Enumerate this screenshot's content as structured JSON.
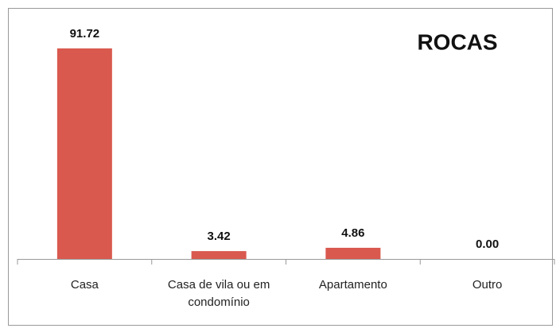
{
  "chart_data": {
    "type": "bar",
    "title": "ROCAS",
    "categories": [
      "Casa",
      "Casa de vila ou em condomínio",
      "Apartamento",
      "Outro"
    ],
    "values": [
      91.72,
      3.42,
      4.86,
      0
    ],
    "value_labels": [
      "91.72",
      "3.42",
      "4.86",
      "0.00"
    ],
    "color": "#d9594f"
  }
}
